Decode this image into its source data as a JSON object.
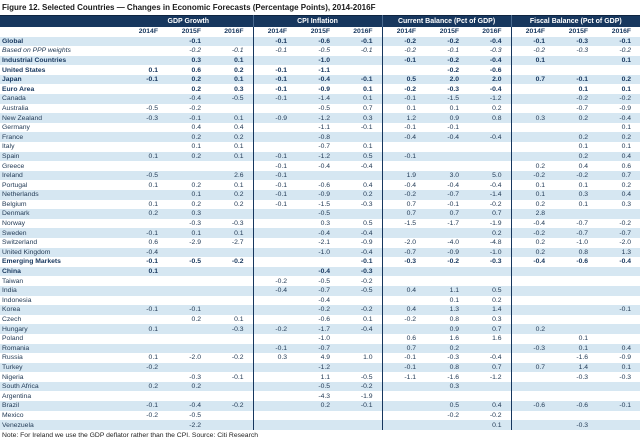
{
  "title": "Figure 12. Selected Countries — Changes in Economic Forecasts (Percentage Points), 2014-2016F",
  "note": "Note: For Ireland we use the GDP deflator rather than the CPI. Source: Citi Research",
  "colors": {
    "header_bg": "#17375E",
    "stripe": "#D6E7F2",
    "text": "#233B56"
  },
  "table": {
    "groups": [
      {
        "label": "GDP Growth"
      },
      {
        "label": "CPI Inflation"
      },
      {
        "label": "Current Balance (Pct of GDP)"
      },
      {
        "label": "Fiscal Balance (Pct of GDP)"
      }
    ],
    "year_headers": [
      "2014F",
      "2015F",
      "2016F",
      "2014F",
      "2015F",
      "2016F",
      "2014F",
      "2015F",
      "2016F",
      "2014F",
      "2015F",
      "2016F"
    ],
    "rows": [
      {
        "label": "Global",
        "style": "bold",
        "values": [
          "",
          "-0.1",
          "",
          "-0.1",
          "-0.6",
          "-0.1",
          "-0.2",
          "-0.2",
          "-0.4",
          "-0.1",
          "-0.3",
          "-0.1"
        ]
      },
      {
        "label": "Based on PPP weights",
        "style": "italic",
        "values": [
          "",
          "-0.2",
          "-0.1",
          "-0.1",
          "-0.5",
          "-0.1",
          "-0.2",
          "-0.1",
          "-0.3",
          "-0.2",
          "-0.3",
          "-0.2"
        ]
      },
      {
        "label": "Industrial Countries",
        "style": "bold",
        "values": [
          "",
          "0.3",
          "0.1",
          "",
          "-1.0",
          "",
          "-0.1",
          "-0.2",
          "-0.4",
          "0.1",
          "",
          "0.1"
        ]
      },
      {
        "label": "United States",
        "style": "bold",
        "values": [
          "0.1",
          "0.6",
          "0.2",
          "-0.1",
          "-1.1",
          "",
          "",
          "-0.2",
          "-0.6",
          "",
          "",
          ""
        ]
      },
      {
        "label": "Japan",
        "style": "bold",
        "values": [
          "-0.1",
          "0.2",
          "0.1",
          "-0.1",
          "-0.4",
          "-0.1",
          "0.5",
          "2.0",
          "2.0",
          "0.7",
          "-0.1",
          "0.2"
        ]
      },
      {
        "label": "Euro Area",
        "style": "bold",
        "values": [
          "",
          "0.2",
          "0.3",
          "-0.1",
          "-0.9",
          "0.1",
          "-0.2",
          "-0.3",
          "-0.4",
          "",
          "0.1",
          "0.1"
        ]
      },
      {
        "label": "Canada",
        "style": "normal",
        "values": [
          "",
          "-0.4",
          "-0.5",
          "-0.1",
          "-1.4",
          "0.1",
          "-0.1",
          "-1.5",
          "-1.2",
          "",
          "-0.2",
          "-0.2"
        ]
      },
      {
        "label": "Australia",
        "style": "normal",
        "values": [
          "-0.5",
          "-0.2",
          "",
          "",
          "-0.5",
          "0.7",
          "0.1",
          "0.1",
          "0.2",
          "",
          "-0.7",
          "-0.9"
        ]
      },
      {
        "label": "New Zealand",
        "style": "normal",
        "values": [
          "-0.3",
          "-0.1",
          "0.1",
          "-0.9",
          "-1.2",
          "0.3",
          "1.2",
          "0.9",
          "0.8",
          "0.3",
          "0.2",
          "-0.4"
        ]
      },
      {
        "label": "Germany",
        "style": "normal",
        "values": [
          "",
          "0.4",
          "0.4",
          "",
          "-1.1",
          "-0.1",
          "-0.1",
          "-0.1",
          "",
          "",
          "",
          "0.1"
        ]
      },
      {
        "label": "France",
        "style": "normal",
        "values": [
          "",
          "0.2",
          "0.2",
          "",
          "-0.8",
          "",
          "-0.4",
          "-0.4",
          "-0.4",
          "",
          "0.2",
          "0.2"
        ]
      },
      {
        "label": "Italy",
        "style": "normal",
        "values": [
          "",
          "0.1",
          "0.1",
          "",
          "-0.7",
          "0.1",
          "",
          "",
          "",
          "",
          "0.1",
          "0.1"
        ]
      },
      {
        "label": "Spain",
        "style": "normal",
        "values": [
          "0.1",
          "0.2",
          "0.1",
          "-0.1",
          "-1.2",
          "0.5",
          "-0.1",
          "",
          "",
          "",
          "0.2",
          "0.4"
        ]
      },
      {
        "label": "Greece",
        "style": "normal",
        "values": [
          "",
          "",
          "",
          "-0.1",
          "-0.4",
          "-0.4",
          "",
          "",
          "",
          "0.2",
          "0.4",
          "0.6"
        ]
      },
      {
        "label": "Ireland",
        "style": "normal",
        "values": [
          "-0.5",
          "",
          "2.6",
          "-0.1",
          "",
          "",
          "1.9",
          "3.0",
          "5.0",
          "-0.2",
          "-0.2",
          "0.7"
        ]
      },
      {
        "label": "Portugal",
        "style": "normal",
        "values": [
          "0.1",
          "0.2",
          "0.1",
          "-0.1",
          "-0.6",
          "0.4",
          "-0.4",
          "-0.4",
          "-0.4",
          "0.1",
          "0.1",
          "0.2"
        ]
      },
      {
        "label": "Netherlands",
        "style": "normal",
        "values": [
          "",
          "0.1",
          "0.2",
          "-0.1",
          "-0.9",
          "0.2",
          "-0.2",
          "-0.7",
          "-1.4",
          "0.1",
          "0.3",
          "0.4"
        ]
      },
      {
        "label": "Belgium",
        "style": "normal",
        "values": [
          "0.1",
          "0.2",
          "0.2",
          "-0.1",
          "-1.5",
          "-0.3",
          "0.7",
          "-0.1",
          "-0.2",
          "0.2",
          "0.1",
          "0.3"
        ]
      },
      {
        "label": "Denmark",
        "style": "normal",
        "values": [
          "0.2",
          "0.3",
          "",
          "",
          "-0.5",
          "",
          "0.7",
          "0.7",
          "0.7",
          "2.8",
          "",
          ""
        ]
      },
      {
        "label": "Norway",
        "style": "normal",
        "values": [
          "",
          "-0.3",
          "-0.3",
          "",
          "0.3",
          "0.5",
          "-1.5",
          "-1.7",
          "-1.9",
          "-0.4",
          "-0.7",
          "-0.2"
        ]
      },
      {
        "label": "Sweden",
        "style": "normal",
        "values": [
          "-0.1",
          "0.1",
          "0.1",
          "",
          "-0.4",
          "-0.4",
          "",
          "",
          "0.2",
          "-0.2",
          "-0.7",
          "-0.7"
        ]
      },
      {
        "label": "Switzerland",
        "style": "normal",
        "values": [
          "0.6",
          "-2.9",
          "-2.7",
          "",
          "-2.1",
          "-0.9",
          "-2.0",
          "-4.0",
          "-4.8",
          "0.2",
          "-1.0",
          "-2.0"
        ]
      },
      {
        "label": "United Kingdom",
        "style": "normal",
        "values": [
          "-0.4",
          "",
          "",
          "",
          "-1.0",
          "-0.4",
          "-0.7",
          "-0.9",
          "-1.0",
          "0.2",
          "0.8",
          "1.3"
        ]
      },
      {
        "label": "Emerging Markets",
        "style": "bold",
        "values": [
          "-0.1",
          "-0.5",
          "-0.2",
          "",
          "",
          "-0.1",
          "-0.3",
          "-0.2",
          "-0.3",
          "-0.4",
          "-0.6",
          "-0.4"
        ]
      },
      {
        "label": "China",
        "style": "bold",
        "values": [
          "0.1",
          "",
          "",
          "",
          "-0.4",
          "-0.3",
          "",
          "",
          "",
          "",
          "",
          ""
        ]
      },
      {
        "label": "Taiwan",
        "style": "normal",
        "values": [
          "",
          "",
          "",
          "-0.2",
          "-0.5",
          "-0.2",
          "",
          "",
          "",
          "",
          "",
          ""
        ]
      },
      {
        "label": "India",
        "style": "normal",
        "values": [
          "",
          "",
          "",
          "-0.4",
          "-0.7",
          "-0.5",
          "0.4",
          "1.1",
          "0.5",
          "",
          "",
          ""
        ]
      },
      {
        "label": "Indonesia",
        "style": "normal",
        "values": [
          "",
          "",
          "",
          "",
          "-0.4",
          "",
          "",
          "0.1",
          "0.2",
          "",
          "",
          ""
        ]
      },
      {
        "label": "Korea",
        "style": "normal",
        "values": [
          "-0.1",
          "-0.1",
          "",
          "",
          "-0.2",
          "-0.2",
          "0.4",
          "1.3",
          "1.4",
          "",
          "",
          "-0.1"
        ]
      },
      {
        "label": "Czech",
        "style": "normal",
        "values": [
          "",
          "0.2",
          "0.1",
          "",
          "-0.6",
          "0.1",
          "-0.2",
          "0.8",
          "0.3",
          "",
          "",
          ""
        ]
      },
      {
        "label": "Hungary",
        "style": "normal",
        "values": [
          "0.1",
          "",
          "-0.3",
          "-0.2",
          "-1.7",
          "-0.4",
          "",
          "0.9",
          "0.7",
          "0.2",
          "",
          ""
        ]
      },
      {
        "label": "Poland",
        "style": "normal",
        "values": [
          "",
          "",
          "",
          "",
          "-1.0",
          "",
          "0.6",
          "1.6",
          "1.6",
          "",
          "0.1",
          ""
        ]
      },
      {
        "label": "Romania",
        "style": "normal",
        "values": [
          "",
          "",
          "",
          "-0.1",
          "-0.7",
          "",
          "0.7",
          "0.2",
          "",
          "-0.3",
          "0.1",
          "0.4"
        ]
      },
      {
        "label": "Russia",
        "style": "normal",
        "values": [
          "0.1",
          "-2.0",
          "-0.2",
          "0.3",
          "4.9",
          "1.0",
          "-0.1",
          "-0.3",
          "-0.4",
          "",
          "-1.6",
          "-0.9"
        ]
      },
      {
        "label": "Turkey",
        "style": "normal",
        "values": [
          "-0.2",
          "",
          "",
          "",
          "-1.2",
          "",
          "-0.1",
          "0.8",
          "0.7",
          "0.7",
          "1.4",
          "0.1"
        ]
      },
      {
        "label": "Nigeria",
        "style": "normal",
        "values": [
          "",
          "-0.3",
          "-0.1",
          "",
          "1.1",
          "-0.5",
          "-1.1",
          "-1.6",
          "-1.2",
          "",
          "-0.3",
          "-0.3"
        ]
      },
      {
        "label": "South Africa",
        "style": "normal",
        "values": [
          "0.2",
          "0.2",
          "",
          "",
          "-0.5",
          "-0.2",
          "",
          "0.3",
          "",
          "",
          "",
          ""
        ]
      },
      {
        "label": "Argentina",
        "style": "normal",
        "values": [
          "",
          "",
          "",
          "",
          "-4.3",
          "-1.9",
          "",
          "",
          "",
          "",
          "",
          ""
        ]
      },
      {
        "label": "Brazil",
        "style": "normal",
        "values": [
          "-0.1",
          "-0.4",
          "-0.2",
          "",
          "0.2",
          "-0.1",
          "",
          "0.5",
          "0.4",
          "-0.6",
          "-0.6",
          "-0.1"
        ]
      },
      {
        "label": "Mexico",
        "style": "normal",
        "values": [
          "-0.2",
          "-0.5",
          "",
          "",
          "",
          "",
          "",
          "-0.2",
          "-0.2",
          "",
          "",
          ""
        ]
      },
      {
        "label": "Venezuela",
        "style": "normal",
        "values": [
          "",
          "-2.2",
          "",
          "",
          "",
          "",
          "",
          "",
          "0.1",
          "",
          "-0.3",
          ""
        ]
      }
    ]
  }
}
